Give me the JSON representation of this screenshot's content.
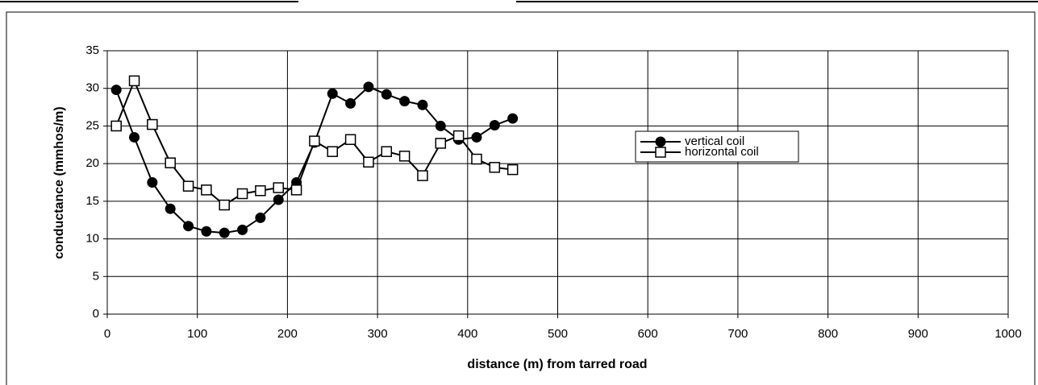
{
  "chart_data": {
    "type": "line",
    "xlabel": "distance (m) from tarred road",
    "ylabel": "conductance (mmhos/m)",
    "x": [
      10,
      30,
      50,
      70,
      90,
      110,
      130,
      150,
      170,
      190,
      210,
      230,
      250,
      270,
      290,
      310,
      330,
      350,
      370,
      390,
      410,
      430,
      450
    ],
    "series": [
      {
        "name": "vertical coil",
        "color": "#000000",
        "marker": "circle",
        "values": [
          29.8,
          23.5,
          17.5,
          14,
          11.7,
          11,
          10.8,
          11.2,
          12.8,
          15.2,
          17.5,
          22.8,
          29.3,
          28,
          30.2,
          29.2,
          28.3,
          27.8,
          25,
          23.2,
          23.5,
          25.1,
          26
        ]
      },
      {
        "name": "horizontal coil",
        "color": "#000000",
        "marker": "square",
        "values": [
          25,
          31,
          25.2,
          20.1,
          17,
          16.5,
          14.5,
          16,
          16.4,
          16.8,
          16.5,
          23,
          21.6,
          23.2,
          20.2,
          21.6,
          21,
          18.4,
          22.7,
          23.7,
          20.6,
          19.5,
          19.2
        ]
      }
    ],
    "xlim": [
      0,
      1000
    ],
    "xticks": [
      0,
      100,
      200,
      300,
      400,
      500,
      600,
      700,
      800,
      900,
      1000
    ],
    "ylim": [
      0,
      35
    ],
    "yticks": [
      0,
      5,
      10,
      15,
      20,
      25,
      30,
      35
    ],
    "grid": true,
    "legend": "center-right"
  }
}
